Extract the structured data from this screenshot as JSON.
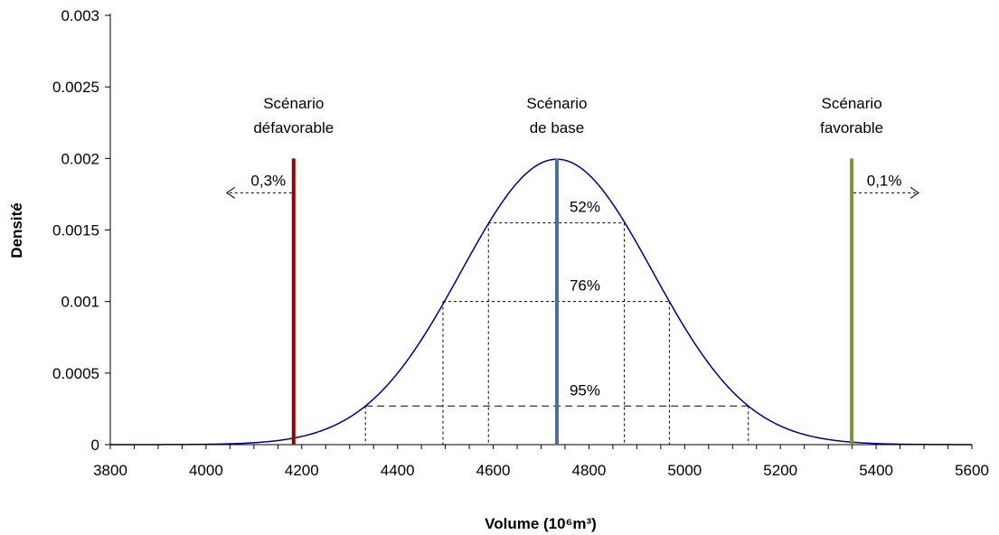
{
  "chart_data": {
    "type": "line",
    "title": "",
    "xlabel": "Volume (10⁶m³)",
    "ylabel": "Densité",
    "xlim": [
      3800,
      5600
    ],
    "ylim": [
      0,
      0.003
    ],
    "x_ticks": [
      "3800",
      "4000",
      "4200",
      "4400",
      "4600",
      "4800",
      "5000",
      "5200",
      "5400",
      "5600"
    ],
    "y_ticks": [
      "0",
      "0.0005",
      "0.001",
      "0.0015",
      "0.002",
      "0.0025",
      "0.003"
    ],
    "grid": false,
    "legend": "none",
    "series": [
      {
        "distribution": "normal",
        "mean": 4733,
        "sd": 200,
        "color": "#000080"
      }
    ],
    "vertical_lines": [
      {
        "x": 4183,
        "label": "Scénario défavorable",
        "label_lines": [
          "Scénario",
          "défavorable"
        ],
        "color": "#990000",
        "tail_label": "0,3%",
        "arrow": "left"
      },
      {
        "x": 4733,
        "label": "Scénario de base",
        "label_lines": [
          "Scénario",
          "de base"
        ],
        "color": "#4f6d9a"
      },
      {
        "x": 5349,
        "label": "Scénario favorable",
        "label_lines": [
          "Scénario",
          "favorable"
        ],
        "color": "#77933c",
        "tail_label": "0,1%",
        "arrow": "right"
      }
    ],
    "intervals": [
      {
        "label": "52%",
        "x_low": 4590,
        "x_high": 4874,
        "y": 0.00155
      },
      {
        "label": "76%",
        "x_low": 4495,
        "x_high": 4968,
        "y": 0.001
      },
      {
        "label": "95%",
        "x_low": 4333,
        "x_high": 5133,
        "y": 0.00027
      }
    ]
  }
}
